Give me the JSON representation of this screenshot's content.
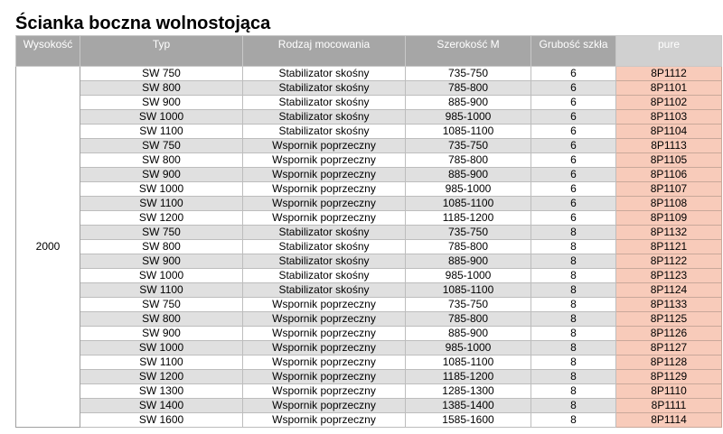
{
  "title": "Ścianka boczna wolnostojąca",
  "colors": {
    "header_bg": "#a6a6a6",
    "pure_header_bg": "#d0d0d0",
    "pure_cell_bg": "#f8cbba",
    "alt_row_bg": "#e0e0e0"
  },
  "table": {
    "headers": [
      "Wysokość",
      "Typ",
      "Rodzaj mocowania",
      "Szerokość M",
      "Grubość szkła",
      "pure"
    ],
    "height_value": "2000",
    "rows": [
      [
        "SW 750",
        "Stabilizator skośny",
        "735-750",
        "6",
        "8P1112"
      ],
      [
        "SW 800",
        "Stabilizator skośny",
        "785-800",
        "6",
        "8P1101"
      ],
      [
        "SW 900",
        "Stabilizator skośny",
        "885-900",
        "6",
        "8P1102"
      ],
      [
        "SW 1000",
        "Stabilizator skośny",
        "985-1000",
        "6",
        "8P1103"
      ],
      [
        "SW 1100",
        "Stabilizator skośny",
        "1085-1100",
        "6",
        "8P1104"
      ],
      [
        "SW 750",
        "Wspornik poprzeczny",
        "735-750",
        "6",
        "8P1113"
      ],
      [
        "SW 800",
        "Wspornik poprzeczny",
        "785-800",
        "6",
        "8P1105"
      ],
      [
        "SW 900",
        "Wspornik poprzeczny",
        "885-900",
        "6",
        "8P1106"
      ],
      [
        "SW 1000",
        "Wspornik poprzeczny",
        "985-1000",
        "6",
        "8P1107"
      ],
      [
        "SW 1100",
        "Wspornik poprzeczny",
        "1085-1100",
        "6",
        "8P1108"
      ],
      [
        "SW 1200",
        "Wspornik poprzeczny",
        "1185-1200",
        "6",
        "8P1109"
      ],
      [
        "SW 750",
        "Stabilizator skośny",
        "735-750",
        "8",
        "8P1132"
      ],
      [
        "SW 800",
        "Stabilizator skośny",
        "785-800",
        "8",
        "8P1121"
      ],
      [
        "SW 900",
        "Stabilizator skośny",
        "885-900",
        "8",
        "8P1122"
      ],
      [
        "SW 1000",
        "Stabilizator skośny",
        "985-1000",
        "8",
        "8P1123"
      ],
      [
        "SW 1100",
        "Stabilizator skośny",
        "1085-1100",
        "8",
        "8P1124"
      ],
      [
        "SW 750",
        "Wspornik poprzeczny",
        "735-750",
        "8",
        "8P1133"
      ],
      [
        "SW 800",
        "Wspornik poprzeczny",
        "785-800",
        "8",
        "8P1125"
      ],
      [
        "SW 900",
        "Wspornik poprzeczny",
        "885-900",
        "8",
        "8P1126"
      ],
      [
        "SW 1000",
        "Wspornik poprzeczny",
        "985-1000",
        "8",
        "8P1127"
      ],
      [
        "SW 1100",
        "Wspornik poprzeczny",
        "1085-1100",
        "8",
        "8P1128"
      ],
      [
        "SW 1200",
        "Wspornik poprzeczny",
        "1185-1200",
        "8",
        "8P1129"
      ],
      [
        "SW 1300",
        "Wspornik poprzeczny",
        "1285-1300",
        "8",
        "8P1110"
      ],
      [
        "SW 1400",
        "Wspornik poprzeczny",
        "1385-1400",
        "8",
        "8P1111"
      ],
      [
        "SW 1600",
        "Wspornik poprzeczny",
        "1585-1600",
        "8",
        "8P1114"
      ]
    ]
  }
}
